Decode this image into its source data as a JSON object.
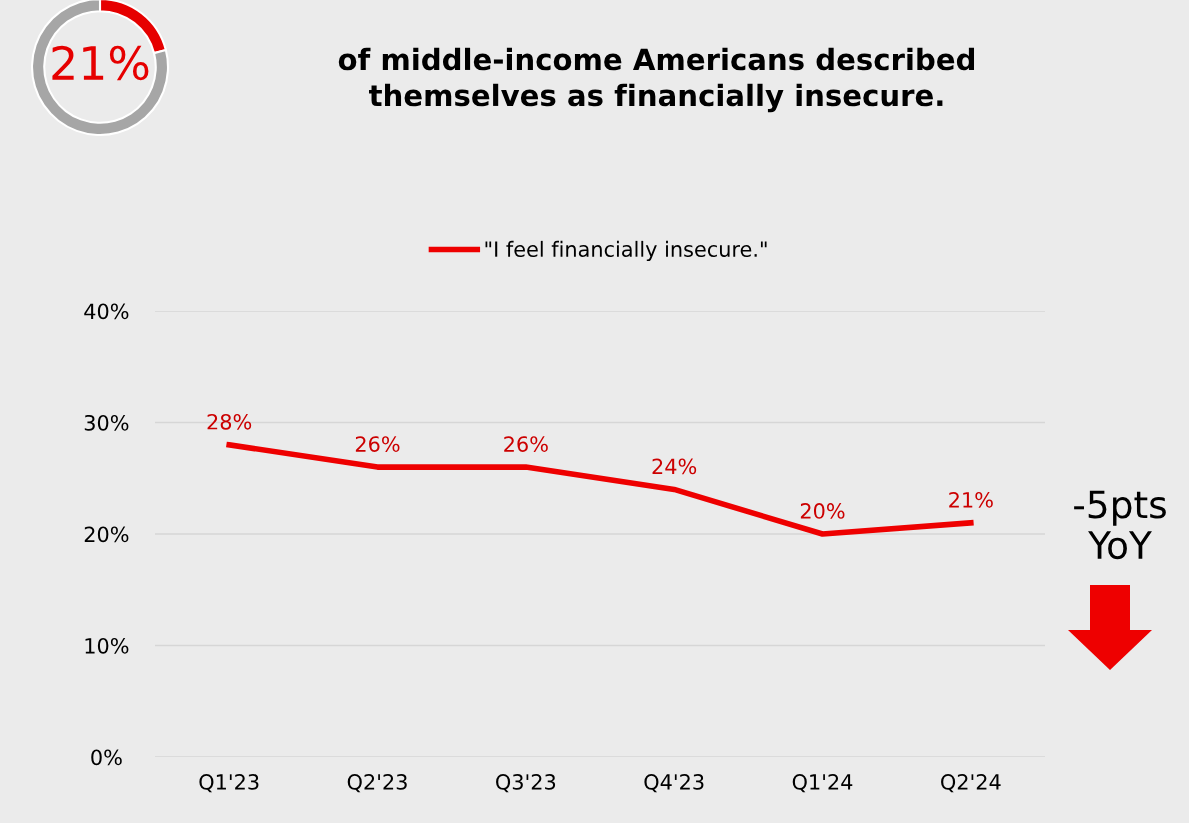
{
  "chart_data": [
    {
      "type": "donut",
      "categories": [
        null,
        null
      ],
      "values": [
        21,
        79
      ],
      "colors": [
        "#e60000",
        "#a6a6a6"
      ],
      "annotations": [
        "21%"
      ]
    },
    {
      "type": "line",
      "title": "of middle-income Americans described\nthemselves as financially insecure.",
      "categories": [
        "Q1'23",
        "Q2'23",
        "Q3'23",
        "Q4'23",
        "Q1'24",
        "Q2'24"
      ],
      "series": [
        {
          "name": "\"I feel financially insecure.\"",
          "color": "#ee0000",
          "values": [
            28,
            26,
            26,
            24,
            20,
            21
          ]
        }
      ],
      "value_labels": [
        "28%",
        "26%",
        "26%",
        "24%",
        "20%",
        "21%"
      ],
      "ylim": [
        0,
        40
      ],
      "yticks": [
        {
          "value": 0,
          "label": "0%"
        },
        {
          "value": 10,
          "label": "10%"
        },
        {
          "value": 20,
          "label": "20%"
        },
        {
          "value": 30,
          "label": "30%"
        },
        {
          "value": 40,
          "label": "40%"
        }
      ],
      "grid": "y",
      "legend": "top",
      "marker": "none",
      "line_style": "solid",
      "annotations": [
        "-5pts\nYoY"
      ]
    }
  ]
}
